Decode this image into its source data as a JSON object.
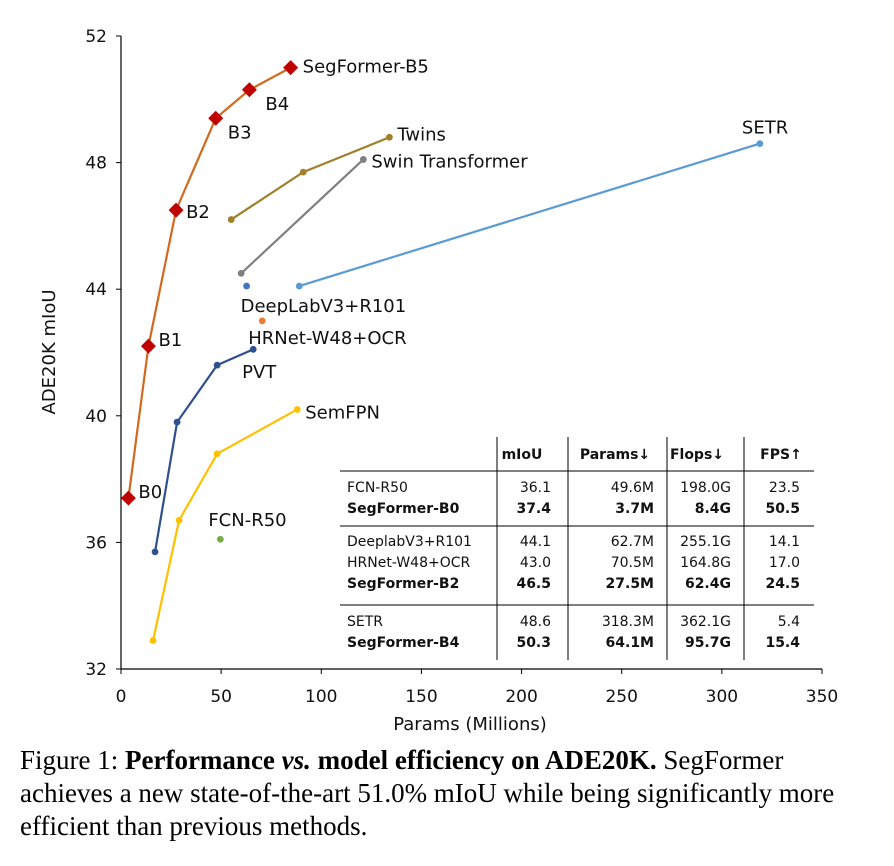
{
  "chart_data": {
    "type": "line",
    "xlabel": "Params (Millions)",
    "ylabel": "ADE20K mIoU",
    "xlim": [
      0,
      350
    ],
    "ylim": [
      32,
      52
    ],
    "xticks": [
      0,
      50,
      100,
      150,
      200,
      250,
      300,
      350
    ],
    "yticks": [
      32,
      36,
      40,
      44,
      48,
      52
    ],
    "grid": false,
    "series": [
      {
        "name": "SegFormer",
        "color": "#D2691E",
        "marker": "diamond",
        "markerColor": "#C00000",
        "x": [
          3.7,
          13.7,
          27.5,
          47.3,
          64.1,
          84.7
        ],
        "y": [
          37.4,
          42.2,
          46.5,
          49.4,
          50.3,
          51.0
        ],
        "pointLabels": [
          "B0",
          "B1",
          "B2",
          "B3",
          "B4",
          "SegFormer-B5"
        ]
      },
      {
        "name": "Twins",
        "color": "#A0802A",
        "marker": "circle",
        "x": [
          55,
          91,
          134
        ],
        "y": [
          46.2,
          47.7,
          48.8
        ],
        "pointLabels": [
          "",
          "",
          "Twins"
        ]
      },
      {
        "name": "Swin Transformer",
        "color": "#7F7F7F",
        "marker": "circle",
        "x": [
          60,
          121
        ],
        "y": [
          44.5,
          48.1
        ],
        "pointLabels": [
          "",
          "Swin Transformer"
        ]
      },
      {
        "name": "SETR",
        "color": "#5B9BD5",
        "marker": "circle",
        "x": [
          89,
          319
        ],
        "y": [
          44.1,
          48.6
        ],
        "pointLabels": [
          "",
          "SETR"
        ]
      },
      {
        "name": "DeepLabV3+R101",
        "color": "#4472C4",
        "marker": "circle",
        "x": [
          62.7
        ],
        "y": [
          44.1
        ],
        "pointLabels": [
          "DeepLabV3+R101"
        ]
      },
      {
        "name": "HRNet-W48+OCR",
        "color": "#ED7D31",
        "marker": "circle",
        "x": [
          70.5
        ],
        "y": [
          43.0
        ],
        "pointLabels": [
          "HRNet-W48+OCR"
        ]
      },
      {
        "name": "PVT",
        "color": "#2F4F8F",
        "marker": "circle",
        "x": [
          17,
          28,
          48,
          66
        ],
        "y": [
          35.7,
          39.8,
          41.6,
          42.1
        ],
        "pointLabels": [
          "",
          "",
          "PVT",
          ""
        ]
      },
      {
        "name": "SemFPN",
        "color": "#FFC000",
        "marker": "circle",
        "x": [
          16,
          29,
          48,
          88
        ],
        "y": [
          32.9,
          36.7,
          38.8,
          40.2
        ],
        "pointLabels": [
          "",
          "",
          "",
          "SemFPN"
        ]
      },
      {
        "name": "FCN-R50",
        "color": "#70AD47",
        "marker": "circle",
        "x": [
          49.6
        ],
        "y": [
          36.1
        ],
        "pointLabels": [
          "FCN-R50"
        ]
      }
    ],
    "table": {
      "columns": [
        "",
        "mIoU",
        "Params↓",
        "Flops↓",
        "FPS↑"
      ],
      "groups": [
        [
          {
            "model": "FCN-R50",
            "miou": "36.1",
            "params": "49.6M",
            "flops": "198.0G",
            "fps": "23.5",
            "bold": false
          },
          {
            "model": "SegFormer-B0",
            "miou": "37.4",
            "params": "3.7M",
            "flops": "8.4G",
            "fps": "50.5",
            "bold": true
          }
        ],
        [
          {
            "model": "DeeplabV3+R101",
            "miou": "44.1",
            "params": "62.7M",
            "flops": "255.1G",
            "fps": "14.1",
            "bold": false
          },
          {
            "model": "HRNet-W48+OCR",
            "miou": "43.0",
            "params": "70.5M",
            "flops": "164.8G",
            "fps": "17.0",
            "bold": false
          },
          {
            "model": "SegFormer-B2",
            "miou": "46.5",
            "params": "27.5M",
            "flops": "62.4G",
            "fps": "24.5",
            "bold": true
          }
        ],
        [
          {
            "model": "SETR",
            "miou": "48.6",
            "params": "318.3M",
            "flops": "362.1G",
            "fps": "5.4",
            "bold": false
          },
          {
            "model": "SegFormer-B4",
            "miou": "50.3",
            "params": "64.1M",
            "flops": "95.7G",
            "fps": "15.4",
            "bold": true
          }
        ]
      ]
    }
  },
  "caption": {
    "prefix": "Figure 1: ",
    "bold_part1": "Performance ",
    "bold_italic": "vs.",
    "bold_part2": " model efficiency on ADE20K.",
    "rest": " SegFormer achieves a new state-of-the-art 51.0% mIoU while being significantly more efficient than previous methods."
  }
}
